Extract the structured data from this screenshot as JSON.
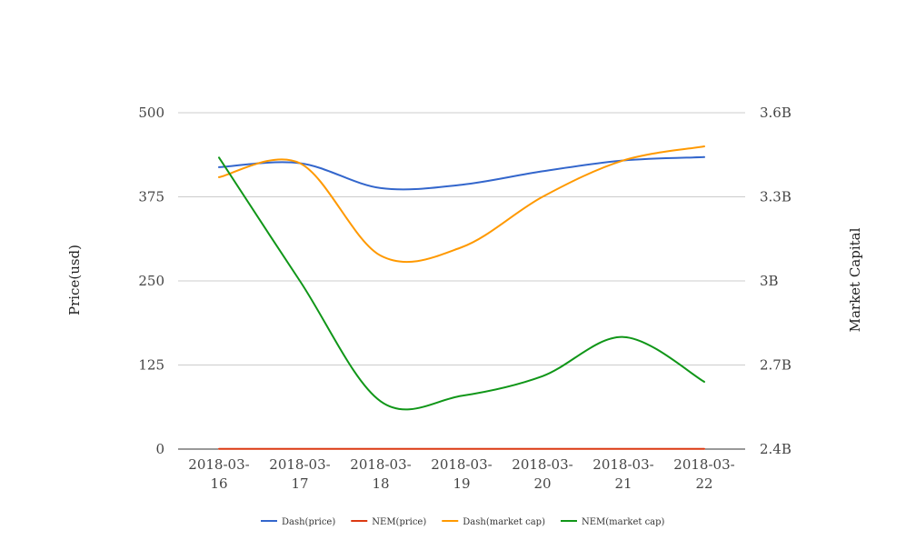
{
  "chart_data": {
    "type": "line",
    "x": [
      "2018-03-16",
      "2018-03-17",
      "2018-03-18",
      "2018-03-19",
      "2018-03-20",
      "2018-03-21",
      "2018-03-22"
    ],
    "x_tick_lines": [
      [
        "2018-03-",
        "16"
      ],
      [
        "2018-03-",
        "17"
      ],
      [
        "2018-03-",
        "18"
      ],
      [
        "2018-03-",
        "19"
      ],
      [
        "2018-03-",
        "20"
      ],
      [
        "2018-03-",
        "21"
      ],
      [
        "2018-03-",
        "22"
      ]
    ],
    "ylabel": "Price(usd)",
    "y2label": "Market Capital",
    "ylim": [
      0,
      500
    ],
    "y2lim": [
      2400000000,
      3600000000
    ],
    "yticks": [
      "0",
      "125",
      "250",
      "375",
      "500"
    ],
    "y2ticks": [
      "2.4B",
      "2.7B",
      "3B",
      "3.3B",
      "3.6B"
    ],
    "grid": true,
    "legend_position": "bottom",
    "series": [
      {
        "name": "Dash(price)",
        "axis": "left",
        "color": "#3366cc",
        "values": [
          419,
          425,
          388,
          393,
          413,
          429,
          434
        ]
      },
      {
        "name": "NEM(price)",
        "axis": "left",
        "color": "#dc3912",
        "values": [
          0.3,
          0.3,
          0.28,
          0.29,
          0.28,
          0.29,
          0.28
        ]
      },
      {
        "name": "Dash(market cap)",
        "axis": "right",
        "color": "#ff9900",
        "values": [
          3370000000,
          3420000000,
          3090000000,
          3120000000,
          3300000000,
          3430000000,
          3480000000
        ]
      },
      {
        "name": "NEM(market cap)",
        "axis": "right",
        "color": "#109618",
        "values": [
          3440000000,
          3000000000,
          2570000000,
          2590000000,
          2660000000,
          2800000000,
          2640000000
        ]
      }
    ]
  }
}
